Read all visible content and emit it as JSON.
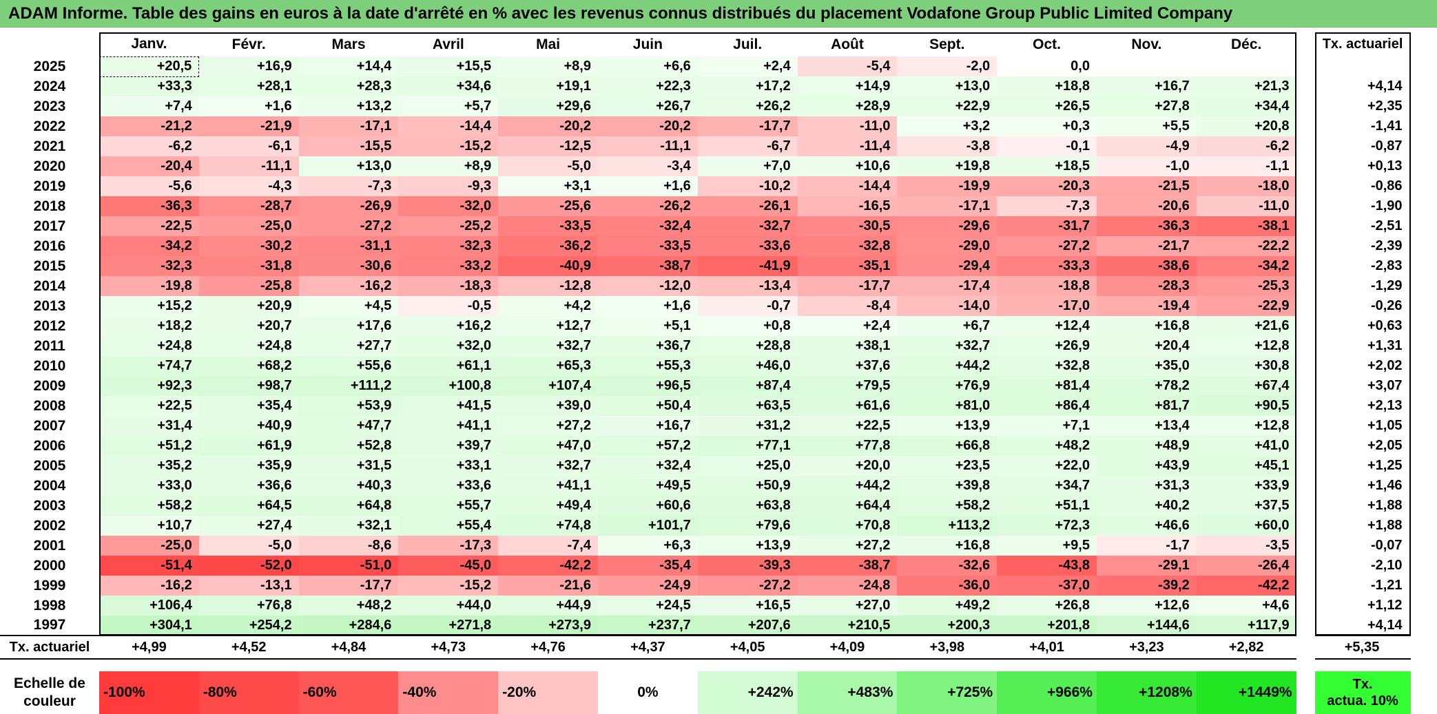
{
  "title": "ADAM Informe. Table des gains en euros à la date d'arrêté en % avec les revenus connus distribués du placement Vodafone Group Public Limited Company",
  "months": [
    "Janv.",
    "Févr.",
    "Mars",
    "Avril",
    "Mai",
    "Juin",
    "Juil.",
    "Août",
    "Sept.",
    "Oct.",
    "Nov.",
    "Déc."
  ],
  "annual_header": "Tx. actuariel",
  "rows": [
    {
      "year": "2025",
      "values": [
        "+20,5",
        "+16,9",
        "+14,4",
        "+15,5",
        "+8,9",
        "+6,6",
        "+2,4",
        "-5,4",
        "-2,0",
        "0,0",
        "",
        ""
      ],
      "annual": ""
    },
    {
      "year": "2024",
      "values": [
        "+33,3",
        "+28,1",
        "+28,3",
        "+34,6",
        "+19,1",
        "+22,3",
        "+17,2",
        "+14,9",
        "+13,0",
        "+18,8",
        "+16,7",
        "+21,3"
      ],
      "annual": "+4,14"
    },
    {
      "year": "2023",
      "values": [
        "+7,4",
        "+1,6",
        "+13,2",
        "+5,7",
        "+29,6",
        "+26,7",
        "+26,2",
        "+28,9",
        "+22,9",
        "+26,5",
        "+27,8",
        "+34,4"
      ],
      "annual": "+2,35"
    },
    {
      "year": "2022",
      "values": [
        "-21,2",
        "-21,9",
        "-17,1",
        "-14,4",
        "-20,2",
        "-20,2",
        "-17,7",
        "-11,0",
        "+3,2",
        "+0,3",
        "+5,5",
        "+20,8"
      ],
      "annual": "-1,41"
    },
    {
      "year": "2021",
      "values": [
        "-6,2",
        "-6,1",
        "-15,5",
        "-15,2",
        "-12,5",
        "-11,1",
        "-6,7",
        "-11,4",
        "-3,8",
        "-0,1",
        "-4,9",
        "-6,2"
      ],
      "annual": "-0,87"
    },
    {
      "year": "2020",
      "values": [
        "-20,4",
        "-11,1",
        "+13,0",
        "+8,9",
        "-5,0",
        "-3,4",
        "+7,0",
        "+10,6",
        "+19,8",
        "+18,5",
        "-1,0",
        "-1,1"
      ],
      "annual": "+0,13"
    },
    {
      "year": "2019",
      "values": [
        "-5,6",
        "-4,3",
        "-7,3",
        "-9,3",
        "+3,1",
        "+1,6",
        "-10,2",
        "-14,4",
        "-19,9",
        "-20,3",
        "-21,5",
        "-18,0"
      ],
      "annual": "-0,86"
    },
    {
      "year": "2018",
      "values": [
        "-36,3",
        "-28,7",
        "-26,9",
        "-32,0",
        "-25,6",
        "-26,2",
        "-26,1",
        "-16,5",
        "-17,1",
        "-7,3",
        "-20,6",
        "-11,0"
      ],
      "annual": "-1,90"
    },
    {
      "year": "2017",
      "values": [
        "-22,5",
        "-25,0",
        "-27,2",
        "-25,2",
        "-33,5",
        "-32,4",
        "-32,7",
        "-30,5",
        "-29,6",
        "-31,7",
        "-36,3",
        "-38,1"
      ],
      "annual": "-2,51"
    },
    {
      "year": "2016",
      "values": [
        "-34,2",
        "-30,2",
        "-31,1",
        "-32,3",
        "-36,2",
        "-33,5",
        "-33,6",
        "-32,8",
        "-29,0",
        "-27,2",
        "-21,7",
        "-22,2"
      ],
      "annual": "-2,39"
    },
    {
      "year": "2015",
      "values": [
        "-32,3",
        "-31,8",
        "-30,6",
        "-33,2",
        "-40,9",
        "-38,7",
        "-41,9",
        "-35,1",
        "-29,4",
        "-33,3",
        "-38,6",
        "-34,2"
      ],
      "annual": "-2,83"
    },
    {
      "year": "2014",
      "values": [
        "-19,8",
        "-25,8",
        "-16,2",
        "-18,3",
        "-12,8",
        "-12,0",
        "-13,4",
        "-17,7",
        "-17,4",
        "-18,8",
        "-28,3",
        "-25,3"
      ],
      "annual": "-1,29"
    },
    {
      "year": "2013",
      "values": [
        "+15,2",
        "+20,9",
        "+4,5",
        "-0,5",
        "+4,2",
        "+1,6",
        "-0,7",
        "-8,4",
        "-14,0",
        "-17,0",
        "-19,4",
        "-22,9"
      ],
      "annual": "-0,26"
    },
    {
      "year": "2012",
      "values": [
        "+18,2",
        "+20,7",
        "+17,6",
        "+16,2",
        "+12,7",
        "+5,1",
        "+0,8",
        "+2,4",
        "+6,7",
        "+12,4",
        "+16,8",
        "+21,6"
      ],
      "annual": "+0,63"
    },
    {
      "year": "2011",
      "values": [
        "+24,8",
        "+24,8",
        "+27,7",
        "+32,0",
        "+32,7",
        "+36,7",
        "+28,8",
        "+38,1",
        "+32,7",
        "+26,9",
        "+20,4",
        "+12,8"
      ],
      "annual": "+1,31"
    },
    {
      "year": "2010",
      "values": [
        "+74,7",
        "+68,2",
        "+55,6",
        "+61,1",
        "+65,3",
        "+55,3",
        "+46,0",
        "+37,6",
        "+44,2",
        "+32,8",
        "+35,0",
        "+30,8"
      ],
      "annual": "+2,02"
    },
    {
      "year": "2009",
      "values": [
        "+92,3",
        "+98,7",
        "+111,2",
        "+100,8",
        "+107,4",
        "+96,5",
        "+87,4",
        "+79,5",
        "+76,9",
        "+81,4",
        "+78,2",
        "+67,4"
      ],
      "annual": "+3,07"
    },
    {
      "year": "2008",
      "values": [
        "+22,5",
        "+35,4",
        "+53,9",
        "+41,5",
        "+39,0",
        "+50,4",
        "+63,5",
        "+61,6",
        "+81,0",
        "+86,4",
        "+81,7",
        "+90,5"
      ],
      "annual": "+2,13"
    },
    {
      "year": "2007",
      "values": [
        "+31,4",
        "+40,9",
        "+47,7",
        "+41,1",
        "+27,2",
        "+16,7",
        "+31,2",
        "+22,5",
        "+13,9",
        "+7,1",
        "+13,4",
        "+12,8"
      ],
      "annual": "+1,05"
    },
    {
      "year": "2006",
      "values": [
        "+51,2",
        "+61,9",
        "+52,8",
        "+39,7",
        "+47,0",
        "+57,2",
        "+77,1",
        "+77,8",
        "+66,8",
        "+48,2",
        "+48,9",
        "+41,0"
      ],
      "annual": "+2,05"
    },
    {
      "year": "2005",
      "values": [
        "+35,2",
        "+35,9",
        "+31,5",
        "+33,1",
        "+32,7",
        "+32,4",
        "+25,0",
        "+20,0",
        "+23,5",
        "+22,0",
        "+43,9",
        "+45,1"
      ],
      "annual": "+1,25"
    },
    {
      "year": "2004",
      "values": [
        "+33,0",
        "+36,6",
        "+40,3",
        "+33,6",
        "+41,1",
        "+49,5",
        "+50,9",
        "+44,2",
        "+39,8",
        "+34,7",
        "+31,3",
        "+33,9"
      ],
      "annual": "+1,46"
    },
    {
      "year": "2003",
      "values": [
        "+58,2",
        "+64,5",
        "+64,8",
        "+55,7",
        "+49,4",
        "+60,6",
        "+63,8",
        "+64,4",
        "+58,2",
        "+51,1",
        "+40,2",
        "+37,5"
      ],
      "annual": "+1,88"
    },
    {
      "year": "2002",
      "values": [
        "+10,7",
        "+27,4",
        "+32,1",
        "+55,4",
        "+74,8",
        "+101,7",
        "+79,6",
        "+70,8",
        "+113,2",
        "+72,3",
        "+46,6",
        "+60,0"
      ],
      "annual": "+1,88"
    },
    {
      "year": "2001",
      "values": [
        "-25,0",
        "-5,0",
        "-8,6",
        "-17,3",
        "-7,4",
        "+6,3",
        "+13,9",
        "+27,2",
        "+16,8",
        "+9,5",
        "-1,7",
        "-3,5"
      ],
      "annual": "-0,07"
    },
    {
      "year": "2000",
      "values": [
        "-51,4",
        "-52,0",
        "-51,0",
        "-45,0",
        "-42,2",
        "-35,4",
        "-39,3",
        "-38,7",
        "-32,6",
        "-43,8",
        "-29,1",
        "-26,4"
      ],
      "annual": "-2,10"
    },
    {
      "year": "1999",
      "values": [
        "-16,2",
        "-13,1",
        "-17,7",
        "-15,2",
        "-21,6",
        "-24,9",
        "-27,2",
        "-24,8",
        "-36,0",
        "-37,0",
        "-39,2",
        "-42,2"
      ],
      "annual": "-1,21"
    },
    {
      "year": "1998",
      "values": [
        "+106,4",
        "+76,8",
        "+48,2",
        "+44,0",
        "+44,9",
        "+24,5",
        "+16,5",
        "+27,0",
        "+49,2",
        "+26,8",
        "+12,6",
        "+4,6"
      ],
      "annual": "+1,12"
    },
    {
      "year": "1997",
      "values": [
        "+304,1",
        "+254,2",
        "+284,6",
        "+271,8",
        "+273,9",
        "+237,7",
        "+207,6",
        "+210,5",
        "+200,3",
        "+201,8",
        "+144,6",
        "+117,9"
      ],
      "annual": "+4,14"
    }
  ],
  "tx_row": {
    "label": "Tx. actuariel",
    "values": [
      "+4,99",
      "+4,52",
      "+4,84",
      "+4,73",
      "+4,76",
      "+4,37",
      "+4,05",
      "+4,09",
      "+3,98",
      "+4,01",
      "+3,23",
      "+2,82"
    ],
    "annual": "+5,35"
  },
  "scale": {
    "label_line1": "Echelle de",
    "label_line2": "couleur",
    "items": [
      {
        "label": "-100%",
        "color": "#ff3b3b",
        "align": "left"
      },
      {
        "label": "-80%",
        "color": "#ff4a4a",
        "align": "left"
      },
      {
        "label": "-60%",
        "color": "#ff5656",
        "align": "left"
      },
      {
        "label": "-40%",
        "color": "#ff8c8c",
        "align": "left"
      },
      {
        "label": "-20%",
        "color": "#ffc4c4",
        "align": "left"
      },
      {
        "label": "0%",
        "color": "#ffffff",
        "align": "center"
      },
      {
        "label": "+242%",
        "color": "#d4fcd4",
        "align": "right"
      },
      {
        "label": "+483%",
        "color": "#aaf8aa",
        "align": "right"
      },
      {
        "label": "+725%",
        "color": "#80f380",
        "align": "right"
      },
      {
        "label": "+966%",
        "color": "#55ee55",
        "align": "right"
      },
      {
        "label": "+1208%",
        "color": "#35e935",
        "align": "right"
      },
      {
        "label": "+1449%",
        "color": "#22e622",
        "align": "right"
      }
    ],
    "tx_line1": "Tx.",
    "tx_line2": "actua. 10%",
    "tx_color": "#33ff33"
  }
}
